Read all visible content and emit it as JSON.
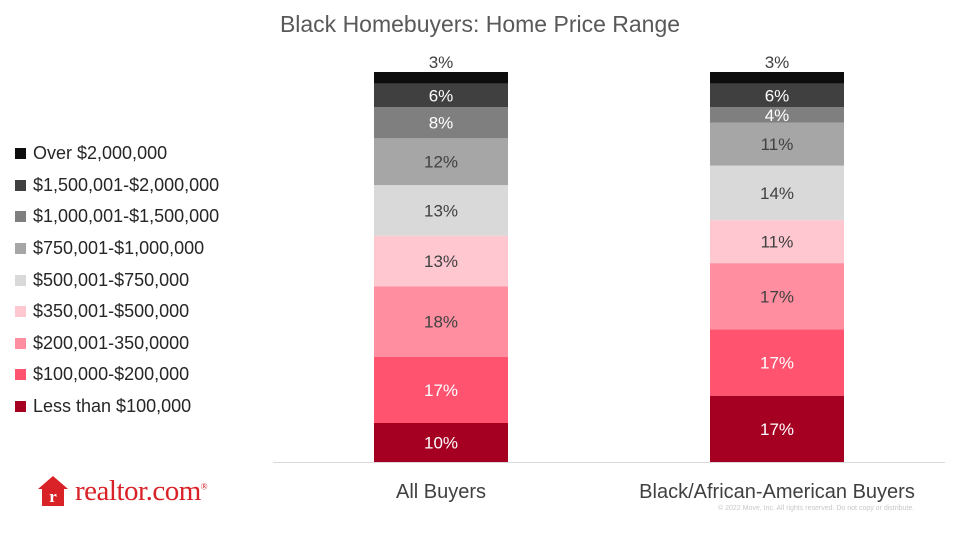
{
  "chart_data": {
    "type": "stacked-bar",
    "title": "Black Homebuyers: Home Price Range",
    "categories": [
      "All Buyers",
      "Black/African-American Buyers"
    ],
    "series": [
      {
        "name": "Less than $100,000",
        "color": "#a50021",
        "values": [
          10,
          17
        ]
      },
      {
        "name": "$100,000-$200,000",
        "color": "#ff5370",
        "values": [
          17,
          17
        ]
      },
      {
        "name": "$200,001-350,0000",
        "color": "#ff8fa0",
        "values": [
          18,
          17
        ]
      },
      {
        "name": "$350,001-$500,000",
        "color": "#ffc7d0",
        "values": [
          13,
          11
        ]
      },
      {
        "name": "$500,001-$750,000",
        "color": "#d9d9d9",
        "values": [
          13,
          14
        ]
      },
      {
        "name": "$750,001-$1,000,000",
        "color": "#a6a6a6",
        "values": [
          12,
          11
        ]
      },
      {
        "name": "$1,000,001-$1,500,000",
        "color": "#7f7f7f",
        "values": [
          8,
          4
        ]
      },
      {
        "name": "$1,500,001-$2,000,000",
        "color": "#404040",
        "values": [
          6,
          6
        ]
      },
      {
        "name": "Over $2,000,000",
        "color": "#0d0d0d",
        "values": [
          3,
          3
        ]
      }
    ],
    "labels": [
      [
        "10%",
        "17%",
        "18%",
        "13%",
        "13%",
        "12%",
        "8%",
        "6%",
        "3%"
      ],
      [
        "17%",
        "17%",
        "17%",
        "11%",
        "14%",
        "11%",
        "4%",
        "6%",
        "3%"
      ]
    ],
    "label_colors": [
      "#ffffff",
      "#ffffff",
      "#404040",
      "#404040",
      "#404040",
      "#404040",
      "#ffffff",
      "#ffffff",
      "#404040"
    ],
    "legend_position": "left",
    "grid": false
  },
  "logo": {
    "text": "realtor.com",
    "reg": "®"
  },
  "footer": {
    "copyright": "© 2022 Move, Inc. All rights reserved. Do not copy or distribute."
  }
}
